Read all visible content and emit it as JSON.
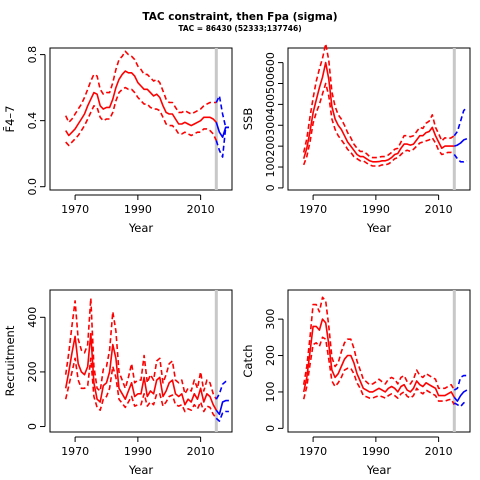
{
  "title": "TAC constraint, then Fpa (sigma)",
  "subtitle": "TAC = 86430 (52333;137746)",
  "colors": {
    "historic": "#ff0000",
    "projection": "#0000ff",
    "divider": "#c8c8c8",
    "axis": "#000000"
  },
  "chart_data": [
    {
      "id": "fbar",
      "type": "line",
      "xlabel": "Year",
      "ylabel": "F̄4–7",
      "xlim": [
        1962,
        2020
      ],
      "ylim": [
        -0.02,
        0.84
      ],
      "xticks": [
        1970,
        1990,
        2010
      ],
      "yticks": [
        0.0,
        0.4,
        0.8
      ],
      "ytick_labels": [
        "0.0",
        "0.4",
        "0.8"
      ],
      "divider_year": 2015,
      "historic": {
        "years": [
          1967,
          1968,
          1969,
          1970,
          1971,
          1972,
          1973,
          1974,
          1975,
          1976,
          1977,
          1978,
          1979,
          1980,
          1981,
          1982,
          1983,
          1984,
          1985,
          1986,
          1987,
          1988,
          1989,
          1990,
          1991,
          1992,
          1993,
          1994,
          1995,
          1996,
          1997,
          1998,
          1999,
          2000,
          2001,
          2002,
          2003,
          2004,
          2005,
          2006,
          2007,
          2008,
          2009,
          2010,
          2011,
          2012,
          2013,
          2014,
          2015
        ],
        "estimate": [
          0.34,
          0.31,
          0.33,
          0.35,
          0.38,
          0.41,
          0.44,
          0.49,
          0.53,
          0.57,
          0.56,
          0.49,
          0.47,
          0.48,
          0.48,
          0.53,
          0.6,
          0.65,
          0.68,
          0.7,
          0.69,
          0.69,
          0.67,
          0.63,
          0.61,
          0.59,
          0.59,
          0.57,
          0.55,
          0.56,
          0.54,
          0.49,
          0.45,
          0.44,
          0.44,
          0.41,
          0.38,
          0.38,
          0.39,
          0.38,
          0.37,
          0.38,
          0.39,
          0.4,
          0.42,
          0.42,
          0.42,
          0.41,
          0.39
        ],
        "lower": [
          0.27,
          0.25,
          0.27,
          0.29,
          0.31,
          0.34,
          0.37,
          0.41,
          0.45,
          0.49,
          0.48,
          0.42,
          0.4,
          0.41,
          0.41,
          0.45,
          0.52,
          0.57,
          0.59,
          0.6,
          0.59,
          0.59,
          0.57,
          0.54,
          0.52,
          0.5,
          0.5,
          0.48,
          0.47,
          0.47,
          0.46,
          0.42,
          0.38,
          0.37,
          0.37,
          0.35,
          0.32,
          0.32,
          0.33,
          0.32,
          0.31,
          0.32,
          0.33,
          0.33,
          0.35,
          0.35,
          0.34,
          0.32,
          0.28
        ],
        "upper": [
          0.43,
          0.39,
          0.41,
          0.44,
          0.47,
          0.5,
          0.54,
          0.59,
          0.64,
          0.68,
          0.67,
          0.59,
          0.56,
          0.57,
          0.57,
          0.63,
          0.71,
          0.77,
          0.79,
          0.82,
          0.8,
          0.79,
          0.77,
          0.73,
          0.71,
          0.68,
          0.68,
          0.66,
          0.64,
          0.65,
          0.63,
          0.58,
          0.53,
          0.51,
          0.51,
          0.48,
          0.45,
          0.45,
          0.46,
          0.45,
          0.44,
          0.45,
          0.46,
          0.47,
          0.49,
          0.5,
          0.51,
          0.51,
          0.51
        ]
      },
      "projection": {
        "years": [
          2015,
          2016,
          2017,
          2018,
          2019
        ],
        "estimate": [
          0.39,
          0.33,
          0.3,
          0.36,
          0.36
        ],
        "lower": [
          0.28,
          0.22,
          0.18,
          0.36,
          0.36
        ],
        "upper": [
          0.51,
          0.55,
          0.44,
          0.36,
          0.36
        ]
      }
    },
    {
      "id": "ssb",
      "type": "line",
      "xlabel": "Year",
      "ylabel": "SSB",
      "xlim": [
        1962,
        2020
      ],
      "ylim": [
        -10,
        670
      ],
      "xticks": [
        1970,
        1990,
        2010
      ],
      "yticks": [
        0,
        100,
        200,
        300,
        400,
        500,
        600
      ],
      "ytick_labels": [
        "0",
        "100",
        "200",
        "300",
        "400",
        "500",
        "600"
      ],
      "divider_year": 2015,
      "historic": {
        "years": [
          1967,
          1968,
          1969,
          1970,
          1971,
          1972,
          1973,
          1974,
          1975,
          1976,
          1977,
          1978,
          1979,
          1980,
          1981,
          1982,
          1983,
          1984,
          1985,
          1986,
          1987,
          1988,
          1989,
          1990,
          1991,
          1992,
          1993,
          1994,
          1995,
          1996,
          1997,
          1998,
          1999,
          2000,
          2001,
          2002,
          2003,
          2004,
          2005,
          2006,
          2007,
          2008,
          2009,
          2010,
          2011,
          2012,
          2013,
          2014,
          2015
        ],
        "estimate": [
          140,
          190,
          270,
          360,
          420,
          480,
          530,
          600,
          520,
          390,
          330,
          300,
          280,
          250,
          220,
          200,
          180,
          160,
          150,
          150,
          140,
          130,
          125,
          125,
          126,
          130,
          130,
          135,
          145,
          160,
          165,
          190,
          210,
          210,
          205,
          210,
          230,
          250,
          250,
          265,
          270,
          290,
          250,
          220,
          190,
          200,
          200,
          200,
          200
        ],
        "lower": [
          110,
          150,
          220,
          310,
          360,
          400,
          450,
          500,
          440,
          330,
          280,
          250,
          230,
          210,
          185,
          170,
          150,
          140,
          130,
          130,
          120,
          110,
          105,
          105,
          105,
          110,
          110,
          115,
          125,
          140,
          145,
          160,
          175,
          180,
          175,
          185,
          200,
          215,
          220,
          225,
          230,
          240,
          215,
          180,
          160,
          165,
          170,
          170,
          165
        ],
        "upper": [
          170,
          235,
          340,
          430,
          510,
          570,
          620,
          690,
          610,
          460,
          390,
          350,
          330,
          300,
          265,
          240,
          210,
          190,
          175,
          175,
          165,
          150,
          145,
          145,
          148,
          150,
          150,
          158,
          170,
          185,
          190,
          220,
          250,
          250,
          245,
          250,
          270,
          290,
          285,
          310,
          320,
          350,
          290,
          260,
          225,
          240,
          235,
          240,
          250
        ]
      },
      "projection": {
        "years": [
          2015,
          2016,
          2017,
          2018,
          2019
        ],
        "estimate": [
          200,
          205,
          215,
          230,
          235
        ],
        "lower": [
          160,
          140,
          125,
          125,
          130
        ],
        "upper": [
          250,
          270,
          320,
          370,
          385
        ]
      }
    },
    {
      "id": "recruitment",
      "type": "line",
      "xlabel": "Year",
      "ylabel": "Recruitment",
      "xlim": [
        1962,
        2020
      ],
      "ylim": [
        -20,
        500
      ],
      "xticks": [
        1970,
        1990,
        2010
      ],
      "yticks": [
        0,
        200,
        400
      ],
      "ytick_labels": [
        "0",
        "200",
        "400"
      ],
      "divider_year": 2015,
      "historic": {
        "years": [
          1967,
          1968,
          1969,
          1970,
          1971,
          1972,
          1973,
          1974,
          1975,
          1976,
          1977,
          1978,
          1979,
          1980,
          1981,
          1982,
          1983,
          1984,
          1985,
          1986,
          1987,
          1988,
          1989,
          1990,
          1991,
          1992,
          1993,
          1994,
          1995,
          1996,
          1997,
          1998,
          1999,
          2000,
          2001,
          2002,
          2003,
          2004,
          2005,
          2006,
          2007,
          2008,
          2009,
          2010,
          2011,
          2012,
          2013,
          2014,
          2015
        ],
        "estimate": [
          140,
          200,
          270,
          330,
          230,
          200,
          190,
          220,
          340,
          160,
          100,
          90,
          150,
          160,
          200,
          300,
          250,
          140,
          120,
          100,
          130,
          160,
          110,
          120,
          120,
          180,
          110,
          130,
          120,
          170,
          180,
          110,
          130,
          160,
          170,
          120,
          110,
          120,
          80,
          100,
          90,
          120,
          100,
          140,
          90,
          120,
          110,
          80,
          60
        ],
        "lower": [
          100,
          150,
          200,
          250,
          170,
          140,
          140,
          150,
          250,
          110,
          70,
          60,
          100,
          110,
          140,
          220,
          180,
          100,
          85,
          70,
          90,
          110,
          75,
          80,
          80,
          120,
          75,
          90,
          80,
          120,
          120,
          75,
          90,
          110,
          115,
          80,
          75,
          80,
          55,
          65,
          60,
          80,
          65,
          90,
          55,
          75,
          70,
          45,
          30
        ],
        "upper": [
          190,
          270,
          370,
          460,
          320,
          280,
          270,
          300,
          470,
          220,
          140,
          130,
          210,
          220,
          280,
          420,
          350,
          200,
          170,
          140,
          180,
          230,
          160,
          170,
          170,
          260,
          160,
          190,
          170,
          240,
          250,
          160,
          190,
          230,
          240,
          170,
          160,
          170,
          120,
          140,
          130,
          170,
          140,
          200,
          130,
          170,
          160,
          120,
          100
        ]
      },
      "projection": {
        "years": [
          2015,
          2016,
          2017,
          2018,
          2019
        ],
        "estimate": [
          60,
          45,
          90,
          95,
          95
        ],
        "lower": [
          30,
          20,
          50,
          55,
          55
        ],
        "upper": [
          100,
          120,
          155,
          165,
          165
        ]
      }
    },
    {
      "id": "catch",
      "type": "line",
      "xlabel": "Year",
      "ylabel": "Catch",
      "xlim": [
        1962,
        2020
      ],
      "ylim": [
        -10,
        380
      ],
      "xticks": [
        1970,
        1990,
        2010
      ],
      "yticks": [
        0,
        100,
        200,
        300
      ],
      "ytick_labels": [
        "0",
        "100",
        "200",
        "300"
      ],
      "divider_year": 2015,
      "historic": {
        "years": [
          1967,
          1968,
          1969,
          1970,
          1971,
          1972,
          1973,
          1974,
          1975,
          1976,
          1977,
          1978,
          1979,
          1980,
          1981,
          1982,
          1983,
          1984,
          1985,
          1986,
          1987,
          1988,
          1989,
          1990,
          1991,
          1992,
          1993,
          1994,
          1995,
          1996,
          1997,
          1998,
          1999,
          2000,
          2001,
          2002,
          2003,
          2004,
          2005,
          2006,
          2007,
          2008,
          2009,
          2010,
          2011,
          2012,
          2013,
          2014,
          2015
        ],
        "estimate": [
          100,
          140,
          210,
          280,
          280,
          270,
          300,
          290,
          230,
          160,
          140,
          150,
          170,
          190,
          200,
          200,
          180,
          150,
          130,
          110,
          105,
          100,
          100,
          105,
          110,
          105,
          100,
          110,
          115,
          110,
          100,
          115,
          120,
          105,
          100,
          110,
          130,
          120,
          115,
          125,
          120,
          115,
          110,
          90,
          90,
          90,
          95,
          100,
          85
        ],
        "lower": [
          80,
          115,
          175,
          230,
          235,
          225,
          250,
          245,
          190,
          130,
          115,
          125,
          140,
          160,
          165,
          165,
          150,
          125,
          110,
          90,
          87,
          83,
          83,
          87,
          90,
          87,
          83,
          90,
          95,
          90,
          83,
          95,
          100,
          88,
          83,
          90,
          110,
          100,
          95,
          105,
          100,
          95,
          90,
          75,
          75,
          75,
          78,
          80,
          65
        ],
        "upper": [
          120,
          170,
          250,
          340,
          340,
          320,
          360,
          350,
          280,
          195,
          170,
          180,
          210,
          235,
          245,
          245,
          220,
          185,
          160,
          135,
          128,
          120,
          122,
          128,
          135,
          128,
          122,
          135,
          140,
          135,
          122,
          140,
          145,
          128,
          122,
          135,
          160,
          145,
          140,
          150,
          145,
          140,
          135,
          110,
          110,
          110,
          115,
          120,
          105
        ]
      },
      "projection": {
        "years": [
          2015,
          2016,
          2017,
          2018,
          2019
        ],
        "estimate": [
          85,
          75,
          90,
          100,
          105
        ],
        "lower": [
          70,
          65,
          60,
          70,
          75
        ],
        "upper": [
          105,
          110,
          140,
          145,
          145
        ]
      }
    }
  ]
}
